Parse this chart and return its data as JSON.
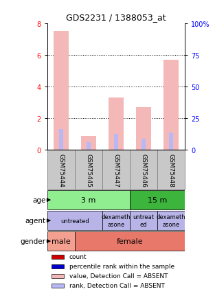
{
  "title": "GDS2231 / 1388053_at",
  "samples": [
    "GSM75444",
    "GSM75445",
    "GSM75447",
    "GSM75446",
    "GSM75448"
  ],
  "bar_values": [
    7.5,
    0.9,
    3.3,
    2.7,
    5.7
  ],
  "rank_values": [
    1.3,
    0.5,
    1.0,
    0.7,
    1.1
  ],
  "bar_color": "#f4b8b8",
  "rank_color": "#b8b8f4",
  "ylim_left": [
    0,
    8
  ],
  "ylim_right": [
    0,
    100
  ],
  "yticks_left": [
    0,
    2,
    4,
    6,
    8
  ],
  "yticks_right": [
    0,
    25,
    50,
    75,
    100
  ],
  "ytick_labels_right": [
    "0",
    "25",
    "50",
    "75",
    "100%"
  ],
  "age_groups": [
    {
      "label": "3 m",
      "cols": [
        0,
        2
      ],
      "color": "#90ee90"
    },
    {
      "label": "15 m",
      "cols": [
        3,
        4
      ],
      "color": "#3db53d"
    }
  ],
  "agent_groups": [
    {
      "label": "untreated",
      "cols": [
        0,
        1
      ],
      "color": "#b8b4e8"
    },
    {
      "label": "dexameth\nasone",
      "cols": [
        2,
        2
      ],
      "color": "#b8b4e8"
    },
    {
      "label": "untreat\ned",
      "cols": [
        3,
        3
      ],
      "color": "#b8b4e8"
    },
    {
      "label": "dexameth\nasone",
      "cols": [
        4,
        4
      ],
      "color": "#b8b4e8"
    }
  ],
  "gender_groups": [
    {
      "label": "male",
      "cols": [
        0,
        0
      ],
      "color": "#f4a090"
    },
    {
      "label": "female",
      "cols": [
        1,
        4
      ],
      "color": "#e8786a"
    }
  ],
  "row_labels": [
    "age",
    "agent",
    "gender"
  ],
  "legend_items": [
    {
      "color": "#cc0000",
      "label": "count"
    },
    {
      "color": "#0000cc",
      "label": "percentile rank within the sample"
    },
    {
      "color": "#f4b8b8",
      "label": "value, Detection Call = ABSENT"
    },
    {
      "color": "#b8b8f4",
      "label": "rank, Detection Call = ABSENT"
    }
  ],
  "sample_bg_color": "#c8c8c8",
  "sample_border_color": "#888888",
  "fig_width": 3.13,
  "fig_height": 4.35,
  "dpi": 100
}
